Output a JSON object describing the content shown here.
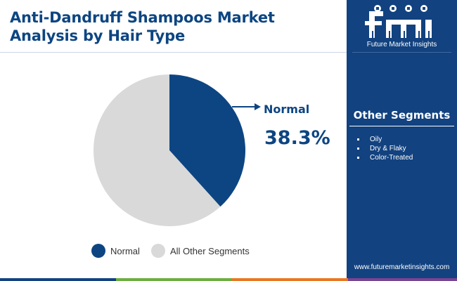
{
  "header": {
    "title": "Anti-Dandruff Shampoos Market Analysis by Hair Type"
  },
  "brand": {
    "logo_letters": "fmi",
    "name": "Future Market Insights",
    "url": "www.futuremarketinsights.com"
  },
  "sidebar": {
    "heading": "Other Segments",
    "items": [
      "Oily",
      "Dry & Flaky",
      "Color-Treated"
    ]
  },
  "chart_data": {
    "type": "pie",
    "title": "",
    "categories": [
      "Normal",
      "All Other Segments"
    ],
    "values": [
      38.3,
      61.7
    ],
    "colors": [
      "#0d4582",
      "#d9d9d9"
    ],
    "callout": {
      "label": "Normal",
      "value": "38.3%"
    },
    "legend": [
      "Normal",
      "All Other Segments"
    ],
    "legend_position": "bottom"
  },
  "colors": {
    "primary": "#0d4582",
    "sidebar": "#12427f",
    "other": "#d9d9d9",
    "bottom_bar": [
      "#12427f",
      "#6cae3e",
      "#e87722",
      "#7b4394"
    ]
  }
}
